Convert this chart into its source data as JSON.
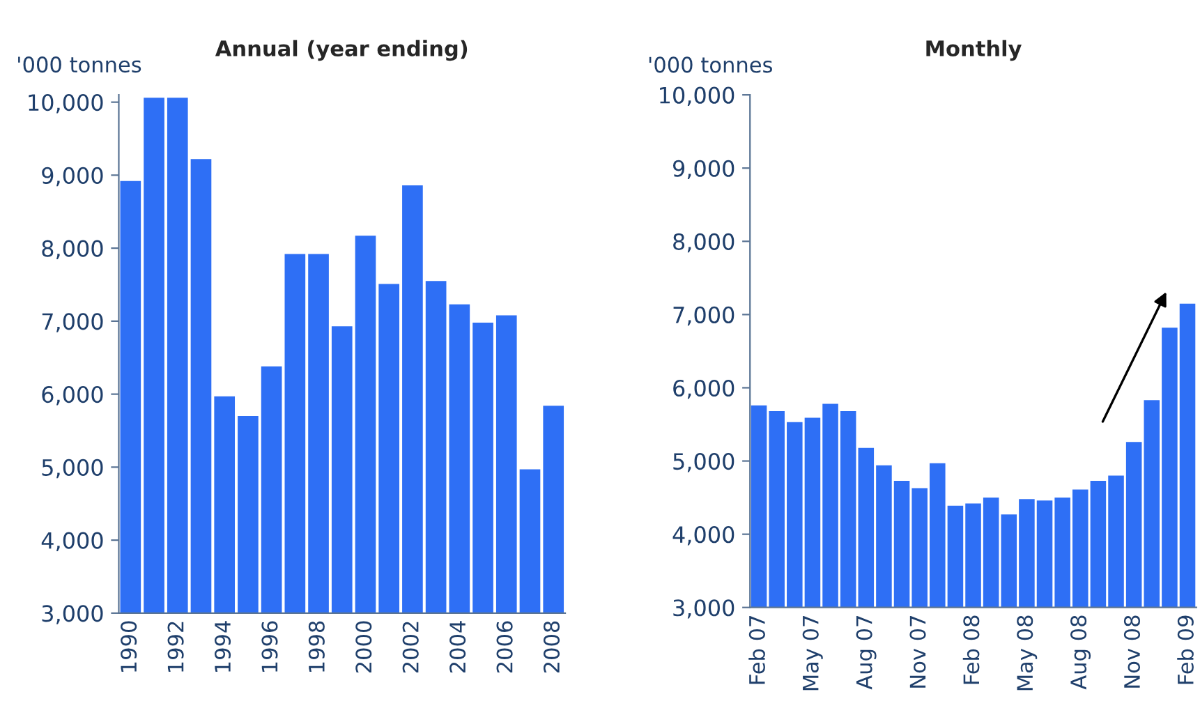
{
  "chart_data": [
    {
      "type": "bar",
      "title": "Annual (year ending)",
      "ylabel": "'000 tonnes",
      "categories": [
        "1990",
        null,
        "1992",
        null,
        "1994",
        null,
        "1996",
        null,
        "1998",
        null,
        "2000",
        null,
        "2002",
        null,
        "2004",
        null,
        "2006",
        null,
        "2008"
      ],
      "values": [
        8920,
        10060,
        10060,
        9220,
        5970,
        5700,
        6380,
        7920,
        7920,
        6930,
        8170,
        7510,
        8860,
        7550,
        7230,
        6980,
        7080,
        4970,
        5840
      ],
      "color": "#2e6ff5",
      "ylim": [
        3000,
        10100
      ],
      "yticks": [
        {
          "value": 3000,
          "label": "3,000"
        },
        {
          "value": 4000,
          "label": "4,000"
        },
        {
          "value": 5000,
          "label": "5,000"
        },
        {
          "value": 6000,
          "label": "6,000"
        },
        {
          "value": 7000,
          "label": "7,000"
        },
        {
          "value": 8000,
          "label": "8,000"
        },
        {
          "value": 9000,
          "label": "9,000"
        },
        {
          "value": 10000,
          "label": "10,000"
        }
      ],
      "grid": false,
      "legend": false
    },
    {
      "type": "bar",
      "title": "Monthly",
      "ylabel": "'000 tonnes",
      "categories": [
        "Feb 07",
        null,
        null,
        "May 07",
        null,
        null,
        "Aug 07",
        null,
        null,
        "Nov 07",
        null,
        null,
        "Feb 08",
        null,
        null,
        "May 08",
        null,
        null,
        "Aug 08",
        null,
        null,
        "Nov 08",
        null,
        null,
        "Feb 09"
      ],
      "values": [
        5760,
        5680,
        5530,
        5590,
        5780,
        5680,
        5180,
        4940,
        4730,
        4630,
        4970,
        4390,
        4420,
        4500,
        4270,
        4480,
        4460,
        4500,
        4610,
        4730,
        4800,
        5260,
        5830,
        6820,
        7150
      ],
      "color": "#2e6ff5",
      "ylim": [
        3000,
        10000
      ],
      "yticks": [
        {
          "value": 3000,
          "label": "3,000"
        },
        {
          "value": 4000,
          "label": "4,000"
        },
        {
          "value": 5000,
          "label": "5,000"
        },
        {
          "value": 6000,
          "label": "6,000"
        },
        {
          "value": 7000,
          "label": "7,000"
        },
        {
          "value": 8000,
          "label": "8,000"
        },
        {
          "value": 9000,
          "label": "9,000"
        },
        {
          "value": 10000,
          "label": "10,000"
        }
      ],
      "grid": false,
      "legend": false
    }
  ]
}
